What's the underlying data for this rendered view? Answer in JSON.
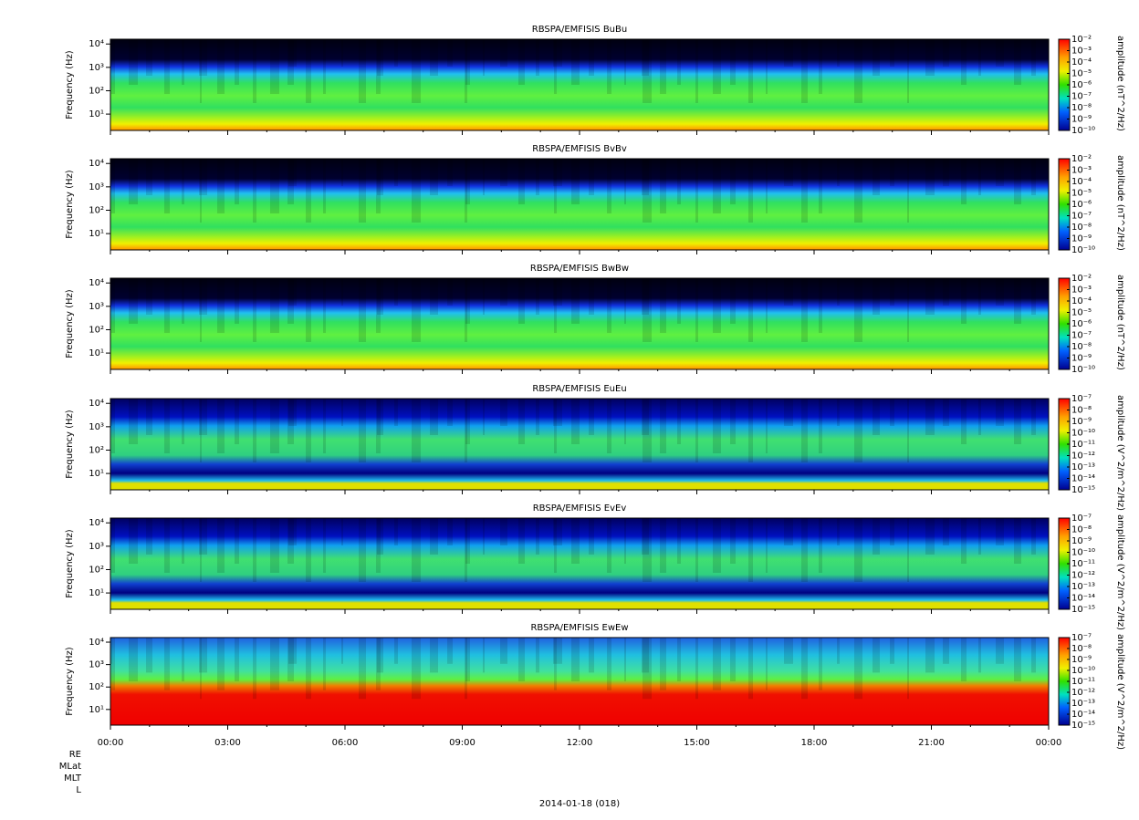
{
  "chart_data": [
    {
      "type": "spectrogram",
      "title": "RBSPA/EMFISIS  BuBu",
      "y_label": "Frequency (Hz)",
      "colorbar_label": "amplitude (nT^2/Hz)",
      "ylim": [
        2,
        16000
      ],
      "yticks": [
        {
          "value": 10,
          "label": "10¹"
        },
        {
          "value": 100,
          "label": "10²"
        },
        {
          "value": 1000,
          "label": "10³"
        },
        {
          "value": 10000,
          "label": "10⁴"
        }
      ],
      "clim": [
        1e-10,
        0.01
      ],
      "cticks": [
        {
          "value": 0.01,
          "label": "10⁻²"
        },
        {
          "value": 0.001,
          "label": "10⁻³"
        },
        {
          "value": 0.0001,
          "label": "10⁻⁴"
        },
        {
          "value": 1e-05,
          "label": "10⁻⁵"
        },
        {
          "value": 1e-06,
          "label": "10⁻⁶"
        },
        {
          "value": 1e-07,
          "label": "10⁻⁷"
        },
        {
          "value": 1e-08,
          "label": "10⁻⁸"
        },
        {
          "value": 1e-09,
          "label": "10⁻⁹"
        },
        {
          "value": 1e-10,
          "label": "10⁻¹⁰"
        }
      ],
      "log_scale": true
    },
    {
      "type": "spectrogram",
      "title": "RBSPA/EMFISIS  BvBv",
      "y_label": "Frequency (Hz)",
      "colorbar_label": "amplitude (nT^2/Hz)",
      "ylim": [
        2,
        16000
      ],
      "yticks": [
        {
          "value": 10,
          "label": "10¹"
        },
        {
          "value": 100,
          "label": "10²"
        },
        {
          "value": 1000,
          "label": "10³"
        },
        {
          "value": 10000,
          "label": "10⁴"
        }
      ],
      "clim": [
        1e-10,
        0.01
      ],
      "cticks": [
        {
          "value": 0.01,
          "label": "10⁻²"
        },
        {
          "value": 0.001,
          "label": "10⁻³"
        },
        {
          "value": 0.0001,
          "label": "10⁻⁴"
        },
        {
          "value": 1e-05,
          "label": "10⁻⁵"
        },
        {
          "value": 1e-06,
          "label": "10⁻⁶"
        },
        {
          "value": 1e-07,
          "label": "10⁻⁷"
        },
        {
          "value": 1e-08,
          "label": "10⁻⁸"
        },
        {
          "value": 1e-09,
          "label": "10⁻⁹"
        },
        {
          "value": 1e-10,
          "label": "10⁻¹⁰"
        }
      ],
      "log_scale": true
    },
    {
      "type": "spectrogram",
      "title": "RBSPA/EMFISIS  BwBw",
      "y_label": "Frequency (Hz)",
      "colorbar_label": "amplitude (nT^2/Hz)",
      "ylim": [
        2,
        16000
      ],
      "yticks": [
        {
          "value": 10,
          "label": "10¹"
        },
        {
          "value": 100,
          "label": "10²"
        },
        {
          "value": 1000,
          "label": "10³"
        },
        {
          "value": 10000,
          "label": "10⁴"
        }
      ],
      "clim": [
        1e-10,
        0.01
      ],
      "cticks": [
        {
          "value": 0.01,
          "label": "10⁻²"
        },
        {
          "value": 0.001,
          "label": "10⁻³"
        },
        {
          "value": 0.0001,
          "label": "10⁻⁴"
        },
        {
          "value": 1e-05,
          "label": "10⁻⁵"
        },
        {
          "value": 1e-06,
          "label": "10⁻⁶"
        },
        {
          "value": 1e-07,
          "label": "10⁻⁷"
        },
        {
          "value": 1e-08,
          "label": "10⁻⁸"
        },
        {
          "value": 1e-09,
          "label": "10⁻⁹"
        },
        {
          "value": 1e-10,
          "label": "10⁻¹⁰"
        }
      ],
      "log_scale": true
    },
    {
      "type": "spectrogram",
      "title": "RBSPA/EMFISIS  EuEu",
      "y_label": "Frequency (Hz)",
      "colorbar_label": "amplitude (V^2/m^2/Hz)",
      "ylim": [
        2,
        16000
      ],
      "yticks": [
        {
          "value": 10,
          "label": "10¹"
        },
        {
          "value": 100,
          "label": "10²"
        },
        {
          "value": 1000,
          "label": "10³"
        },
        {
          "value": 10000,
          "label": "10⁴"
        }
      ],
      "clim": [
        1e-15,
        1e-07
      ],
      "cticks": [
        {
          "value": 1e-07,
          "label": "10⁻⁷"
        },
        {
          "value": 1e-08,
          "label": "10⁻⁸"
        },
        {
          "value": 1e-09,
          "label": "10⁻⁹"
        },
        {
          "value": 1e-10,
          "label": "10⁻¹⁰"
        },
        {
          "value": 1e-11,
          "label": "10⁻¹¹"
        },
        {
          "value": 1e-12,
          "label": "10⁻¹²"
        },
        {
          "value": 1e-13,
          "label": "10⁻¹³"
        },
        {
          "value": 1e-14,
          "label": "10⁻¹⁴"
        },
        {
          "value": 1e-15,
          "label": "10⁻¹⁵"
        }
      ],
      "log_scale": true
    },
    {
      "type": "spectrogram",
      "title": "RBSPA/EMFISIS  EvEv",
      "y_label": "Frequency (Hz)",
      "colorbar_label": "amplitude (V^2/m^2/Hz)",
      "ylim": [
        2,
        16000
      ],
      "yticks": [
        {
          "value": 10,
          "label": "10¹"
        },
        {
          "value": 100,
          "label": "10²"
        },
        {
          "value": 1000,
          "label": "10³"
        },
        {
          "value": 10000,
          "label": "10⁴"
        }
      ],
      "clim": [
        1e-15,
        1e-07
      ],
      "cticks": [
        {
          "value": 1e-07,
          "label": "10⁻⁷"
        },
        {
          "value": 1e-08,
          "label": "10⁻⁸"
        },
        {
          "value": 1e-09,
          "label": "10⁻⁹"
        },
        {
          "value": 1e-10,
          "label": "10⁻¹⁰"
        },
        {
          "value": 1e-11,
          "label": "10⁻¹¹"
        },
        {
          "value": 1e-12,
          "label": "10⁻¹²"
        },
        {
          "value": 1e-13,
          "label": "10⁻¹³"
        },
        {
          "value": 1e-14,
          "label": "10⁻¹⁴"
        },
        {
          "value": 1e-15,
          "label": "10⁻¹⁵"
        }
      ],
      "log_scale": true
    },
    {
      "type": "spectrogram",
      "title": "RBSPA/EMFISIS  EwEw",
      "y_label": "Frequency (Hz)",
      "colorbar_label": "amplitude (V^2/m^2/Hz)",
      "ylim": [
        2,
        16000
      ],
      "yticks": [
        {
          "value": 10,
          "label": "10¹"
        },
        {
          "value": 100,
          "label": "10²"
        },
        {
          "value": 1000,
          "label": "10³"
        },
        {
          "value": 10000,
          "label": "10⁴"
        }
      ],
      "clim": [
        1e-15,
        1e-07
      ],
      "cticks": [
        {
          "value": 1e-07,
          "label": "10⁻⁷"
        },
        {
          "value": 1e-08,
          "label": "10⁻⁸"
        },
        {
          "value": 1e-09,
          "label": "10⁻⁹"
        },
        {
          "value": 1e-10,
          "label": "10⁻¹⁰"
        },
        {
          "value": 1e-11,
          "label": "10⁻¹¹"
        },
        {
          "value": 1e-12,
          "label": "10⁻¹²"
        },
        {
          "value": 1e-13,
          "label": "10⁻¹³"
        },
        {
          "value": 1e-14,
          "label": "10⁻¹⁴"
        },
        {
          "value": 1e-15,
          "label": "10⁻¹⁵"
        }
      ],
      "log_scale": true
    }
  ],
  "x_axis": {
    "xlim": [
      0,
      24
    ],
    "xticks": [
      {
        "value": 0,
        "label": "00:00"
      },
      {
        "value": 3,
        "label": "03:00"
      },
      {
        "value": 6,
        "label": "06:00"
      },
      {
        "value": 9,
        "label": "09:00"
      },
      {
        "value": 12,
        "label": "12:00"
      },
      {
        "value": 15,
        "label": "15:00"
      },
      {
        "value": 18,
        "label": "18:00"
      },
      {
        "value": 21,
        "label": "21:00"
      },
      {
        "value": 24,
        "label": "00:00"
      }
    ]
  },
  "ephemeris_labels": [
    "RE",
    "MLat",
    "MLT",
    "L"
  ],
  "date_label": "2014-01-18 (018)"
}
